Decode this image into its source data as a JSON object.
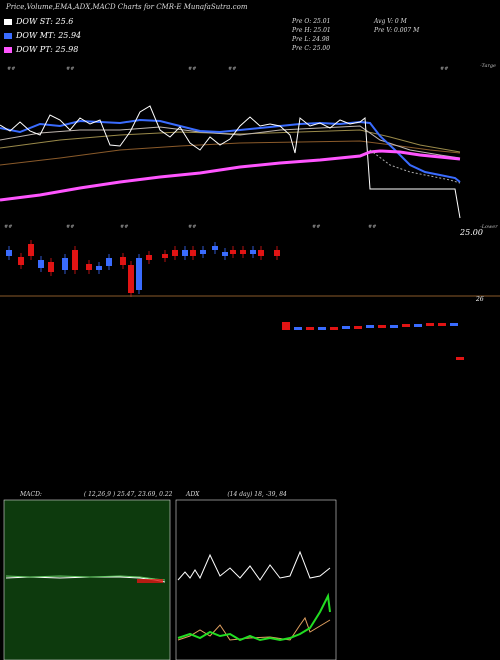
{
  "title": "Price,Volume,EMA,ADX,MACD Charts for CMR-E MunafaSutra.com",
  "legend": [
    {
      "label": "DOW ST: 25.6",
      "color": "#ffffff"
    },
    {
      "label": "DOW MT: 25.94",
      "color": "#3a6cff"
    },
    {
      "label": "DOW PT: 25.98",
      "color": "#ff55ff"
    }
  ],
  "ohlc": {
    "open": "Pre  O: 25.01",
    "high": "Pre  H: 25.01",
    "low": "Pre  L: 24.98",
    "close": "Pre  C: 25.00"
  },
  "volume_stats": {
    "avg": "Avg V: 0  M",
    "prev": "Pre  V: 0.007 M"
  },
  "price_axis": {
    "top_label": "25.00",
    "upper_tag": "-Targe",
    "lower_tag": "-Lower"
  },
  "volume_axis": {
    "label": "26"
  },
  "macd": {
    "name": "MACD:",
    "params": "( 12,26,9 ) 25.47,  23.69,  0.22"
  },
  "adx": {
    "name": "ADX",
    "params": "(14  day) 18,  -39,  84"
  },
  "colors": {
    "up": "#3a6cff",
    "down": "#e11414",
    "bg_macd": "#0d3a0d"
  },
  "chart_data": {
    "type": "line",
    "series": [
      {
        "name": "DOW ST",
        "values": [
          25.6
        ]
      },
      {
        "name": "DOW MT",
        "values": [
          25.94
        ]
      },
      {
        "name": "DOW PT",
        "values": [
          25.98
        ]
      }
    ],
    "macd": [
      25.47,
      23.69,
      0.22
    ],
    "adx": [
      18,
      -39,
      84
    ],
    "ohlc": {
      "open": 25.01,
      "high": 25.01,
      "low": 24.98,
      "close": 25.0
    },
    "volume_m": {
      "avg": 0,
      "prev": 0.007
    }
  }
}
